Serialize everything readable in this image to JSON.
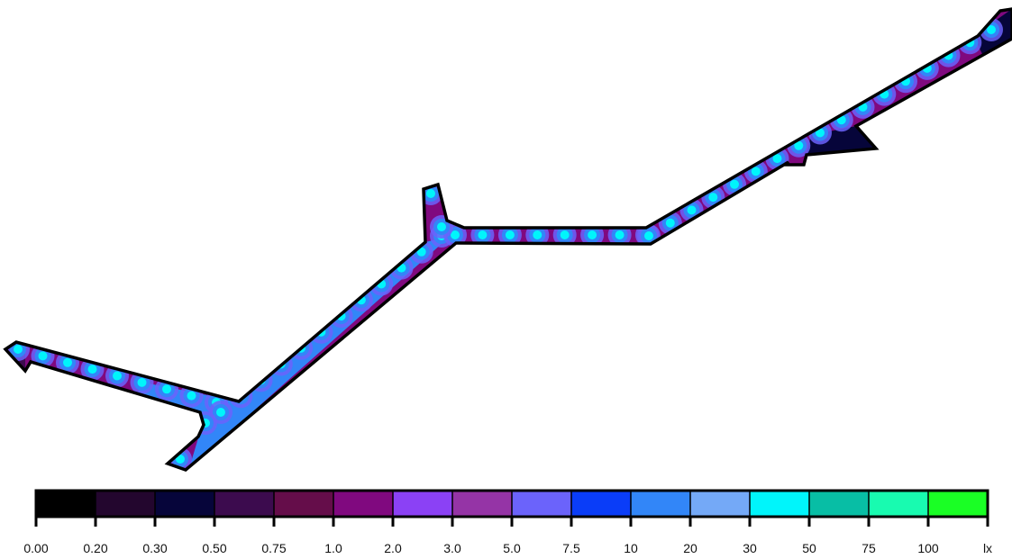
{
  "chart_data": {
    "type": "heatmap",
    "title": "",
    "unit": "lx",
    "legend": {
      "position": "bottom",
      "bins": [
        {
          "from": "0.00",
          "to": "0.20",
          "color": "#000000"
        },
        {
          "from": "0.20",
          "to": "0.30",
          "color": "#23062e"
        },
        {
          "from": "0.30",
          "to": "0.50",
          "color": "#06053a"
        },
        {
          "from": "0.50",
          "to": "0.75",
          "color": "#3c0b4e"
        },
        {
          "from": "0.75",
          "to": "1.0",
          "color": "#650d4a"
        },
        {
          "from": "1.0",
          "to": "2.0",
          "color": "#80097f"
        },
        {
          "from": "2.0",
          "to": "3.0",
          "color": "#8b41f5"
        },
        {
          "from": "3.0",
          "to": "5.0",
          "color": "#9534a6"
        },
        {
          "from": "5.0",
          "to": "7.5",
          "color": "#6b63fb"
        },
        {
          "from": "7.5",
          "to": "10",
          "color": "#0a3df8"
        },
        {
          "from": "10",
          "to": "20",
          "color": "#3286f8"
        },
        {
          "from": "20",
          "to": "30",
          "color": "#74a9f7"
        },
        {
          "from": "30",
          "to": "50",
          "color": "#00f5fb"
        },
        {
          "from": "50",
          "to": "75",
          "color": "#08bea5"
        },
        {
          "from": "75",
          "to": "100",
          "color": "#18fbb0"
        },
        {
          "from": "100",
          "to": "",
          "color": "#1aff25"
        }
      ],
      "tick_labels": [
        "0.00",
        "0.20",
        "0.30",
        "0.50",
        "0.75",
        "1.0",
        "2.0",
        "3.0",
        "5.0",
        "7.5",
        "10",
        "20",
        "30",
        "50",
        "75",
        "100",
        "lx"
      ]
    },
    "dominant_levels": [
      "1.0–2.0",
      "2.0–3.0",
      "5.0–7.5",
      "10–20",
      "30–50"
    ]
  }
}
